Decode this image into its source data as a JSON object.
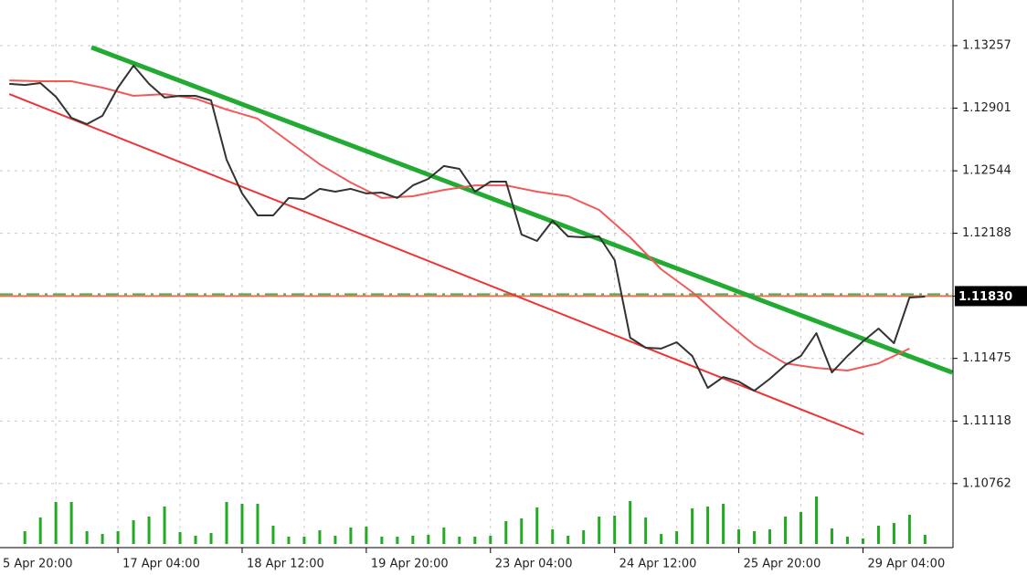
{
  "chart_data": {
    "type": "line",
    "x": [
      0,
      1,
      2,
      3,
      4,
      5,
      6,
      7,
      8,
      9,
      10,
      11,
      12,
      13,
      14,
      15,
      16,
      17,
      18,
      19,
      20,
      21,
      22,
      23,
      24,
      25,
      26,
      27,
      28,
      29,
      30,
      31,
      32,
      33,
      34,
      35,
      36,
      37,
      38,
      39,
      40,
      41,
      42,
      43,
      44,
      45,
      46,
      47,
      48,
      49,
      50,
      51,
      52,
      53,
      54,
      55,
      56,
      57,
      58,
      59
    ],
    "series": [
      {
        "color": "#333333",
        "values": [
          1.13039,
          1.13033,
          1.13044,
          1.12966,
          1.12846,
          1.1281,
          1.12857,
          1.13018,
          1.13143,
          1.13039,
          1.12961,
          1.12971,
          1.12971,
          1.12945,
          1.12607,
          1.12415,
          1.1229,
          1.1229,
          1.12389,
          1.12383,
          1.12441,
          1.12425,
          1.12441,
          1.12415,
          1.1242,
          1.12389,
          1.12461,
          1.12498,
          1.12571,
          1.12555,
          1.12425,
          1.12482,
          1.12482,
          1.12181,
          1.12144,
          1.12259,
          1.1217,
          1.12165,
          1.1217,
          1.12035,
          1.11593,
          1.11536,
          1.11531,
          1.11567,
          1.11489,
          1.11307,
          1.11369,
          1.11343,
          1.11291,
          1.11359,
          1.11437,
          1.11489,
          1.11619,
          1.11395,
          1.11489,
          1.11572,
          1.11645,
          1.11562,
          1.11822,
          1.11827
        ]
      },
      {
        "color": "#f05a5a",
        "x": [
          0,
          2,
          4,
          6,
          8,
          10,
          12,
          14,
          16,
          18,
          20,
          22,
          24,
          26,
          28,
          30,
          32,
          34,
          36,
          38,
          40,
          42,
          44,
          46,
          48,
          50,
          52,
          54,
          56,
          58
        ],
        "values": [
          1.13059,
          1.13054,
          1.13054,
          1.13018,
          1.12971,
          1.12981,
          1.12955,
          1.12893,
          1.12841,
          1.12711,
          1.12581,
          1.12477,
          1.12389,
          1.12399,
          1.12435,
          1.12461,
          1.12461,
          1.12425,
          1.12399,
          1.12321,
          1.12165,
          1.11983,
          1.11853,
          1.11697,
          1.11551,
          1.11447,
          1.11421,
          1.11406,
          1.11447,
          1.11531
        ]
      }
    ],
    "trendlines": [
      {
        "color": "#22aa33",
        "x": [
          5.29,
          60.76
        ],
        "values": [
          1.13247,
          1.11395
        ]
      },
      {
        "color": "#ee3333",
        "x": [
          0,
          55.06
        ],
        "values": [
          1.12981,
          1.11042
        ]
      }
    ],
    "price_line": {
      "value": 1.1183,
      "label": "1.11830",
      "color": "#f07050",
      "dash_color": "#4caf50"
    },
    "volume": {
      "color": "#22aa22",
      "x": [
        1,
        2,
        3,
        4,
        5,
        6,
        7,
        8,
        9,
        10,
        11,
        12,
        13,
        14,
        15,
        16,
        17,
        18,
        19,
        20,
        21,
        22,
        23,
        24,
        25,
        26,
        27,
        28,
        29,
        30,
        31,
        32,
        33,
        34,
        35,
        36,
        37,
        38,
        39,
        40,
        41,
        42,
        43,
        44,
        45,
        46,
        47,
        48,
        49,
        50,
        51,
        52,
        53,
        54,
        55,
        56,
        57,
        58,
        59
      ],
      "values": [
        14,
        29,
        46,
        46,
        14,
        11,
        14,
        26,
        30,
        41,
        13,
        9,
        12,
        46,
        44,
        44,
        20,
        8,
        8,
        15,
        9,
        18,
        19,
        8,
        8,
        9,
        10,
        18,
        8,
        8,
        9,
        25,
        28,
        40,
        16,
        9,
        15,
        30,
        31,
        47,
        29,
        11,
        14,
        39,
        41,
        44,
        16,
        14,
        16,
        30,
        35,
        52,
        17,
        8,
        6,
        20,
        23,
        32,
        10
      ]
    },
    "xlim": [
      -0.6,
      60.8
    ],
    "xticks": [
      {
        "value": -1,
        "label": "5 Apr 20:00"
      },
      {
        "value": 7,
        "label": "17 Apr 04:00"
      },
      {
        "value": 15,
        "label": "18 Apr 12:00"
      },
      {
        "value": 23,
        "label": "19 Apr 20:00"
      },
      {
        "value": 31,
        "label": "23 Apr 04:00"
      },
      {
        "value": 39,
        "label": "24 Apr 12:00"
      },
      {
        "value": 47,
        "label": "25 Apr 20:00"
      },
      {
        "value": 55,
        "label": "29 Apr 04:00"
      }
    ],
    "ylim": [
      1.10397,
      1.13517
    ],
    "yticks": [
      1.13257,
      1.12901,
      1.12544,
      1.12188,
      1.1183,
      1.11475,
      1.11118,
      1.10762
    ],
    "grid": true
  }
}
